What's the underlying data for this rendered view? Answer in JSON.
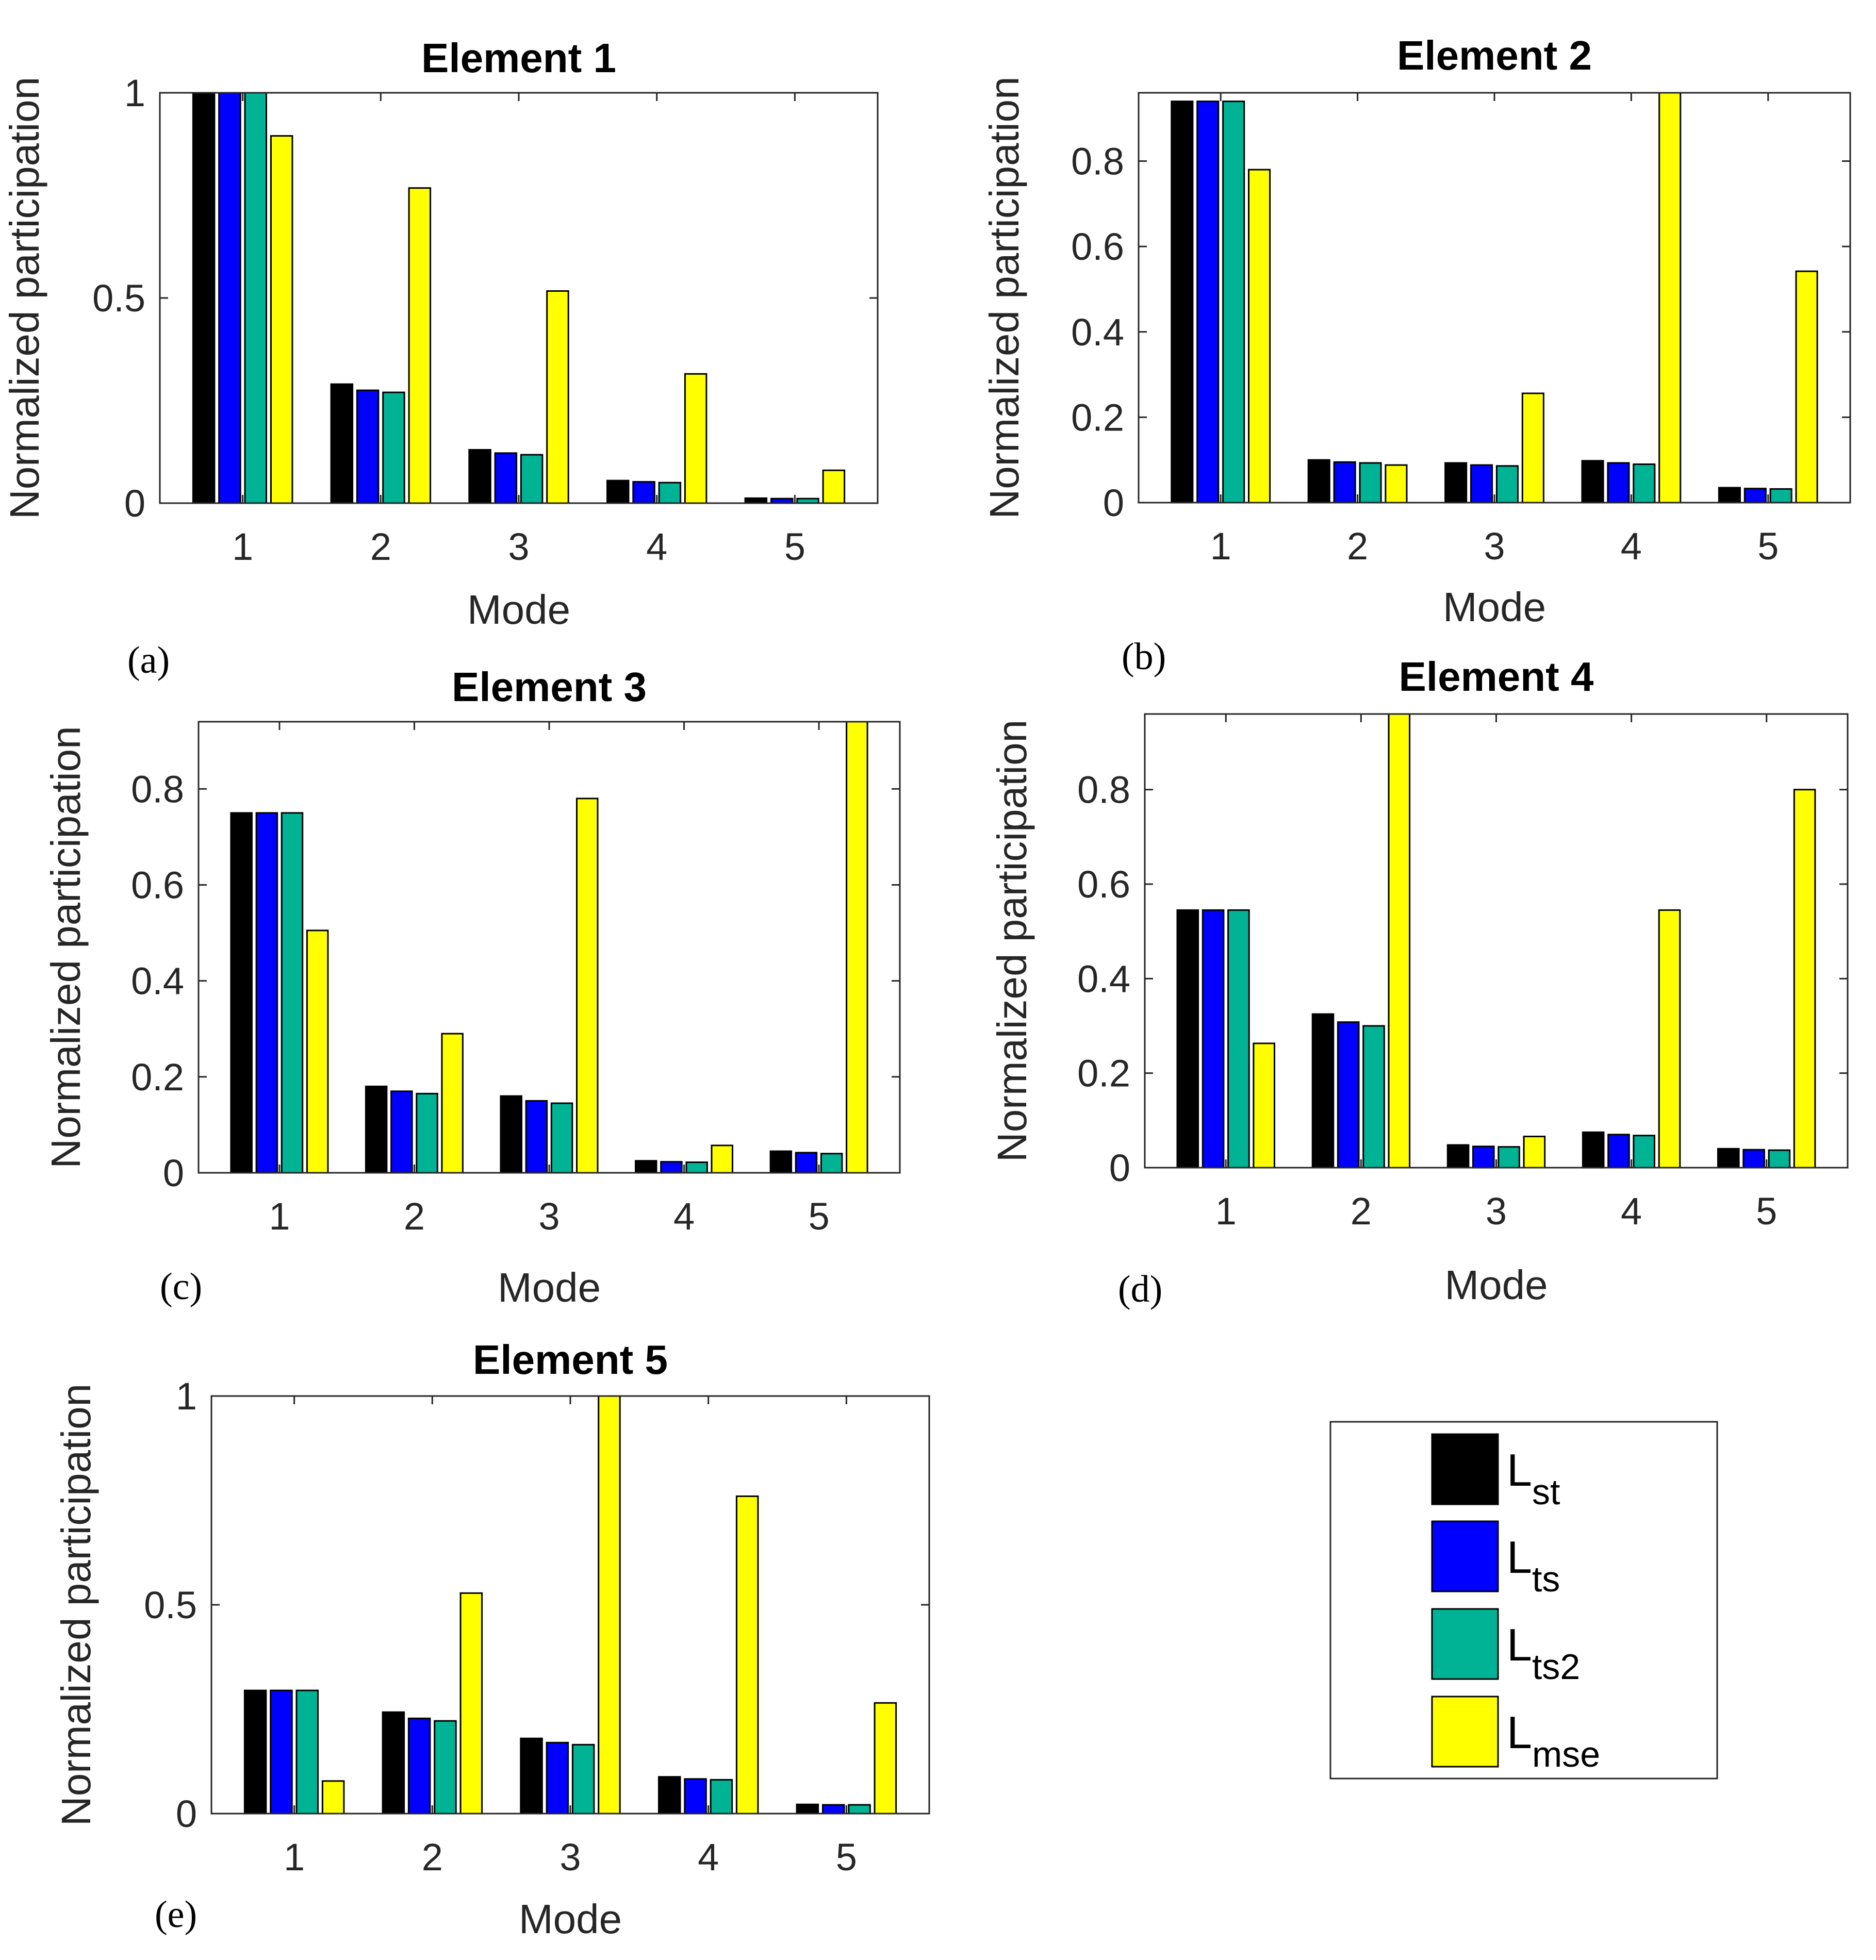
{
  "colors": {
    "L_st": "#000000",
    "L_ts": "#0000ff",
    "L_ts2": "#00b395",
    "L_mse": "#ffff00",
    "axis": "#262626"
  },
  "legend": {
    "entries": [
      {
        "key": "L_st",
        "main": "L",
        "sub": "st"
      },
      {
        "key": "L_ts",
        "main": "L",
        "sub": "ts"
      },
      {
        "key": "L_ts2",
        "main": "L",
        "sub": "ts2"
      },
      {
        "key": "L_mse",
        "main": "L",
        "sub": "mse"
      }
    ]
  },
  "chart_data": [
    {
      "type": "bar",
      "panel": "(a)",
      "title": "Element 1",
      "xlabel": "Mode",
      "ylabel": "Normalized participation",
      "categories": [
        "1",
        "2",
        "3",
        "4",
        "5"
      ],
      "ylim": [
        0,
        1
      ],
      "yticks": [
        0,
        0.5,
        1
      ],
      "ytick_labels": [
        "0",
        "0.5",
        "1"
      ],
      "series": [
        {
          "name": "L_st",
          "values": [
            1.0,
            0.29,
            0.13,
            0.055,
            0.012
          ]
        },
        {
          "name": "L_ts",
          "values": [
            1.0,
            0.275,
            0.122,
            0.052,
            0.011
          ]
        },
        {
          "name": "L_ts2",
          "values": [
            1.0,
            0.27,
            0.118,
            0.05,
            0.011
          ]
        },
        {
          "name": "L_mse",
          "values": [
            0.895,
            0.768,
            0.517,
            0.315,
            0.08
          ]
        }
      ]
    },
    {
      "type": "bar",
      "panel": "(b)",
      "title": "Element 2",
      "xlabel": "Mode",
      "ylabel": "Normalized participation",
      "categories": [
        "1",
        "2",
        "3",
        "4",
        "5"
      ],
      "ylim": [
        0,
        0.96
      ],
      "yticks": [
        0,
        0.2,
        0.4,
        0.6,
        0.8
      ],
      "ytick_labels": [
        "0",
        "0.2",
        "0.4",
        "0.6",
        "0.8"
      ],
      "series": [
        {
          "name": "L_st",
          "values": [
            0.94,
            0.1,
            0.093,
            0.098,
            0.035
          ]
        },
        {
          "name": "L_ts",
          "values": [
            0.94,
            0.095,
            0.088,
            0.093,
            0.033
          ]
        },
        {
          "name": "L_ts2",
          "values": [
            0.94,
            0.093,
            0.086,
            0.09,
            0.032
          ]
        },
        {
          "name": "L_mse",
          "values": [
            0.78,
            0.088,
            0.256,
            0.96,
            0.542
          ]
        }
      ]
    },
    {
      "type": "bar",
      "panel": "(c)",
      "title": "Element 3",
      "xlabel": "Mode",
      "ylabel": "Normalized participation",
      "categories": [
        "1",
        "2",
        "3",
        "4",
        "5"
      ],
      "ylim": [
        0,
        0.94
      ],
      "yticks": [
        0,
        0.2,
        0.4,
        0.6,
        0.8
      ],
      "ytick_labels": [
        "0",
        "0.2",
        "0.4",
        "0.6",
        "0.8"
      ],
      "series": [
        {
          "name": "L_st",
          "values": [
            0.75,
            0.18,
            0.16,
            0.025,
            0.045
          ]
        },
        {
          "name": "L_ts",
          "values": [
            0.75,
            0.17,
            0.15,
            0.023,
            0.042
          ]
        },
        {
          "name": "L_ts2",
          "values": [
            0.75,
            0.165,
            0.145,
            0.022,
            0.04
          ]
        },
        {
          "name": "L_mse",
          "values": [
            0.505,
            0.29,
            0.78,
            0.057,
            0.94
          ]
        }
      ]
    },
    {
      "type": "bar",
      "panel": "(d)",
      "title": "Element 4",
      "xlabel": "Mode",
      "ylabel": "Normalized participation",
      "categories": [
        "1",
        "2",
        "3",
        "4",
        "5"
      ],
      "ylim": [
        0,
        0.96
      ],
      "yticks": [
        0,
        0.2,
        0.4,
        0.6,
        0.8
      ],
      "ytick_labels": [
        "0",
        "0.2",
        "0.4",
        "0.6",
        "0.8"
      ],
      "series": [
        {
          "name": "L_st",
          "values": [
            0.545,
            0.325,
            0.048,
            0.075,
            0.04
          ]
        },
        {
          "name": "L_ts",
          "values": [
            0.545,
            0.308,
            0.045,
            0.07,
            0.038
          ]
        },
        {
          "name": "L_ts2",
          "values": [
            0.545,
            0.3,
            0.044,
            0.068,
            0.037
          ]
        },
        {
          "name": "L_mse",
          "values": [
            0.263,
            0.96,
            0.066,
            0.545,
            0.8
          ]
        }
      ]
    },
    {
      "type": "bar",
      "panel": "(e)",
      "title": "Element 5",
      "xlabel": "Mode",
      "ylabel": "Normalized participation",
      "categories": [
        "1",
        "2",
        "3",
        "4",
        "5"
      ],
      "ylim": [
        0,
        1
      ],
      "yticks": [
        0,
        0.5,
        1
      ],
      "ytick_labels": [
        "0",
        "0.5",
        "1"
      ],
      "series": [
        {
          "name": "L_st",
          "values": [
            0.295,
            0.243,
            0.18,
            0.088,
            0.022
          ]
        },
        {
          "name": "L_ts",
          "values": [
            0.295,
            0.228,
            0.17,
            0.083,
            0.021
          ]
        },
        {
          "name": "L_ts2",
          "values": [
            0.295,
            0.222,
            0.165,
            0.081,
            0.021
          ]
        },
        {
          "name": "L_mse",
          "values": [
            0.078,
            0.528,
            1.0,
            0.76,
            0.265
          ]
        }
      ]
    }
  ]
}
